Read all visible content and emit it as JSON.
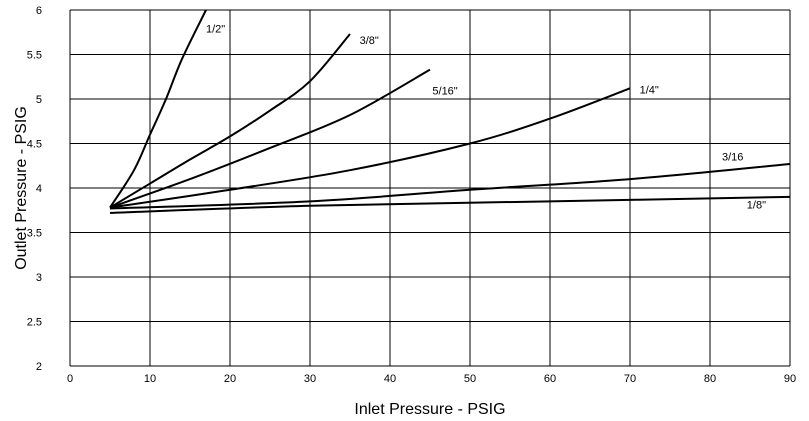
{
  "chart_data": {
    "type": "line",
    "xlabel": "Inlet Pressure - PSIG",
    "ylabel": "Outlet Pressure - PSIG",
    "xlim": [
      0,
      90
    ],
    "ylim": [
      2,
      6
    ],
    "x_ticks": [
      0,
      10,
      20,
      30,
      40,
      50,
      60,
      70,
      80,
      90
    ],
    "y_ticks": [
      2,
      2.5,
      3,
      3.5,
      4,
      4.5,
      5,
      5.5,
      6
    ],
    "grid": true,
    "legend": "none (series labeled inline)",
    "series": [
      {
        "name": "1/2\"",
        "points": [
          [
            5,
            3.78
          ],
          [
            8,
            4.2
          ],
          [
            10,
            4.6
          ],
          [
            12,
            5.0
          ],
          [
            14,
            5.45
          ],
          [
            17,
            6.0
          ]
        ]
      },
      {
        "name": "3/8\"",
        "points": [
          [
            5,
            3.78
          ],
          [
            10,
            4.05
          ],
          [
            15,
            4.32
          ],
          [
            20,
            4.58
          ],
          [
            25,
            4.87
          ],
          [
            30,
            5.2
          ],
          [
            35,
            5.73
          ]
        ]
      },
      {
        "name": "5/16\"",
        "points": [
          [
            5,
            3.78
          ],
          [
            15,
            4.1
          ],
          [
            25,
            4.45
          ],
          [
            35,
            4.82
          ],
          [
            45,
            5.33
          ]
        ]
      },
      {
        "name": "1/4\"",
        "points": [
          [
            5,
            3.78
          ],
          [
            20,
            3.98
          ],
          [
            35,
            4.2
          ],
          [
            50,
            4.5
          ],
          [
            60,
            4.78
          ],
          [
            70,
            5.12
          ]
        ]
      },
      {
        "name": "3/16",
        "points": [
          [
            5,
            3.77
          ],
          [
            30,
            3.85
          ],
          [
            50,
            3.98
          ],
          [
            70,
            4.1
          ],
          [
            90,
            4.27
          ]
        ]
      },
      {
        "name": "1/8\"",
        "points": [
          [
            5,
            3.72
          ],
          [
            30,
            3.8
          ],
          [
            60,
            3.85
          ],
          [
            90,
            3.9
          ]
        ]
      }
    ],
    "labels": [
      {
        "text": "1/2\"",
        "x": 17.0,
        "y": 5.75
      },
      {
        "text": "3/8\"",
        "x": 36.2,
        "y": 5.62
      },
      {
        "text": "5/16\"",
        "x": 45.3,
        "y": 5.05
      },
      {
        "text": "1/4\"",
        "x": 71.2,
        "y": 5.06
      },
      {
        "text": "3/16",
        "x": 81.5,
        "y": 4.31
      },
      {
        "text": "1/8\"",
        "x": 84.6,
        "y": 3.77
      }
    ]
  }
}
